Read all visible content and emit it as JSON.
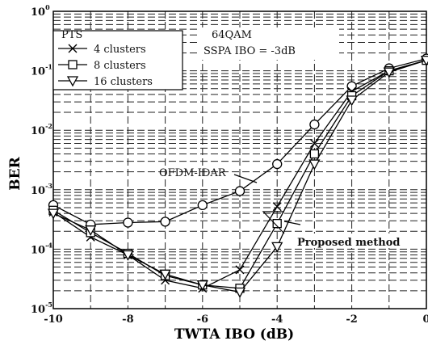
{
  "chart_data": {
    "type": "line",
    "xlabel": "TWTA IBO (dB)",
    "ylabel": "BER",
    "xlim": [
      -10,
      0
    ],
    "ylim": [
      1e-05,
      1
    ],
    "yscale": "log",
    "grid": true,
    "x_ticks": [
      -10,
      -8,
      -6,
      -4,
      -2,
      0
    ],
    "x_tick_labels": [
      "-10",
      "-8",
      "-6",
      "-4",
      "-2",
      "0"
    ],
    "y_ticks": [
      {
        "value": 1,
        "base": "10",
        "exp": "0"
      },
      {
        "value": 0.1,
        "base": "10",
        "exp": "-1"
      },
      {
        "value": 0.01,
        "base": "10",
        "exp": "-2"
      },
      {
        "value": 0.001,
        "base": "10",
        "exp": "-3"
      },
      {
        "value": 0.0001,
        "base": "10",
        "exp": "-4"
      },
      {
        "value": 1e-05,
        "base": "10",
        "exp": "-5"
      }
    ],
    "legend": {
      "title": "PTS",
      "placement": "top-left",
      "entries": [
        "4 clusters",
        "8 clusters",
        "16 clusters"
      ]
    },
    "annotations": {
      "modulation": "64QAM",
      "ssapa": "SSPA IBO = -3dB",
      "ofdm_idar": "OFDM-IDAR",
      "proposed": "Proposed method"
    },
    "series": [
      {
        "name": "OFDM-IDAR",
        "marker": "circle",
        "x": [
          -10,
          -9,
          -8,
          -7,
          -6,
          -5,
          -4,
          -3,
          -2,
          -1,
          0
        ],
        "y": [
          0.00055,
          0.00026,
          0.00028,
          0.00029,
          0.00055,
          0.00095,
          0.0027,
          0.0125,
          0.055,
          0.11,
          0.16
        ]
      },
      {
        "name": "4 clusters",
        "marker": "x",
        "x": [
          -10,
          -9,
          -8,
          -7,
          -6,
          -5,
          -4,
          -3,
          -2,
          -1,
          0
        ],
        "y": [
          0.00042,
          0.00016,
          8e-05,
          3e-05,
          2.2e-05,
          4.5e-05,
          0.00052,
          0.006,
          0.045,
          0.1,
          0.15
        ]
      },
      {
        "name": "8 clusters",
        "marker": "square",
        "x": [
          -10,
          -9,
          -8,
          -7,
          -6,
          -5,
          -4,
          -3,
          -2,
          -1,
          0
        ],
        "y": [
          0.00045,
          0.00019,
          8.5e-05,
          3.6e-05,
          2.5e-05,
          2.2e-05,
          0.00027,
          0.004,
          0.038,
          0.1,
          0.15
        ]
      },
      {
        "name": "16 clusters",
        "marker": "triangle-down",
        "x": [
          -10,
          -9,
          -8,
          -7,
          -6,
          -5,
          -4,
          -3,
          -2,
          -1,
          0
        ],
        "y": [
          0.0004,
          0.00021,
          8e-05,
          3.8e-05,
          2.5e-05,
          1.9e-05,
          0.00011,
          0.0027,
          0.032,
          0.095,
          0.15
        ]
      }
    ]
  }
}
